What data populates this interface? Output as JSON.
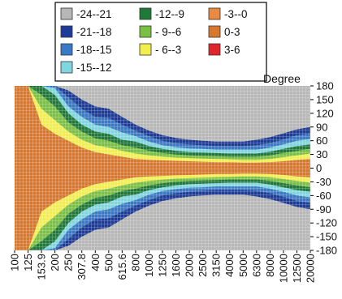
{
  "chart_data": {
    "type": "heatmap",
    "title": "",
    "xlabel": "",
    "ylabel": "Degree",
    "x_scale": "log",
    "x_ticks": [
      "100",
      "125",
      "153.9",
      "200",
      "250",
      "307.8",
      "400",
      "500",
      "615.6",
      "800",
      "1000",
      "1250",
      "1600",
      "2000",
      "2500",
      "3150",
      "4000",
      "5000",
      "6300",
      "8000",
      "10000",
      "12500",
      "20000"
    ],
    "y_ticks": [
      "180",
      "150",
      "120",
      "90",
      "60",
      "30",
      "0",
      "-30",
      "-60",
      "-90",
      "-120",
      "-150",
      "-180"
    ],
    "y_range": [
      -180,
      180
    ],
    "legend_position": "top-center",
    "legend": [
      {
        "label": "-24--21",
        "color": "#b7b7b7"
      },
      {
        "label": "-21--18",
        "color": "#1d3c99"
      },
      {
        "label": "-18--15",
        "color": "#3a79c6"
      },
      {
        "label": "-15--12",
        "color": "#7fd6e0"
      },
      {
        "label": "-12--9",
        "color": "#1f7a3a"
      },
      {
        "label": "- 9--6",
        "color": "#7ac143"
      },
      {
        "label": "- 6--3",
        "color": "#f2ee4e"
      },
      {
        "label": "-3--0",
        "color": "#e98a43"
      },
      {
        "label": "0-3",
        "color": "#d9772d"
      },
      {
        "label": "3-6",
        "color": "#e0262b"
      }
    ],
    "bands_by_frequency": [
      {
        "freq": "100",
        "-3--0": 180,
        "-6--3": 180,
        "-9--6": 180,
        "-12--9": 180,
        "-15--12": 180,
        "-18--15": 180,
        "-21--18": 180
      },
      {
        "freq": "125",
        "-3--0": 180,
        "-6--3": 180,
        "-9--6": 180,
        "-12--9": 180,
        "-15--12": 180,
        "-18--15": 180,
        "-21--18": 180
      },
      {
        "freq": "153.9",
        "-3--0": 95,
        "-6--3": 130,
        "-9--6": 160,
        "-12--9": 180,
        "-15--12": 180,
        "-18--15": 180,
        "-21--18": 180
      },
      {
        "freq": "200",
        "-3--0": 75,
        "-6--3": 105,
        "-9--6": 135,
        "-12--9": 160,
        "-15--12": 175,
        "-18--15": 180,
        "-21--18": 180
      },
      {
        "freq": "250",
        "-3--0": 60,
        "-6--3": 80,
        "-9--6": 100,
        "-12--9": 120,
        "-15--12": 135,
        "-18--15": 155,
        "-21--18": 170
      },
      {
        "freq": "307.8",
        "-3--0": 45,
        "-6--3": 62,
        "-9--6": 80,
        "-12--9": 95,
        "-15--12": 112,
        "-18--15": 130,
        "-21--18": 150
      },
      {
        "freq": "400",
        "-3--0": 35,
        "-6--3": 50,
        "-9--6": 65,
        "-12--9": 80,
        "-15--12": 95,
        "-18--15": 112,
        "-21--18": 135
      },
      {
        "freq": "500",
        "-3--0": 30,
        "-6--3": 45,
        "-9--6": 60,
        "-12--9": 75,
        "-15--12": 90,
        "-18--15": 110,
        "-21--18": 130
      },
      {
        "freq": "615.6",
        "-3--0": 25,
        "-6--3": 38,
        "-9--6": 50,
        "-12--9": 62,
        "-15--12": 78,
        "-18--15": 95,
        "-21--18": 112
      },
      {
        "freq": "800",
        "-3--0": 20,
        "-6--3": 32,
        "-9--6": 45,
        "-12--9": 58,
        "-15--12": 70,
        "-18--15": 82,
        "-21--18": 95
      },
      {
        "freq": "1000",
        "-3--0": 18,
        "-6--3": 28,
        "-9--6": 38,
        "-12--9": 48,
        "-15--12": 58,
        "-18--15": 70,
        "-21--18": 82
      },
      {
        "freq": "1250",
        "-3--0": 17,
        "-6--3": 25,
        "-9--6": 33,
        "-12--9": 42,
        "-15--12": 50,
        "-18--15": 60,
        "-21--18": 72
      },
      {
        "freq": "1600",
        "-3--0": 16,
        "-6--3": 23,
        "-9--6": 30,
        "-12--9": 38,
        "-15--12": 46,
        "-18--15": 55,
        "-21--18": 66
      },
      {
        "freq": "2000",
        "-3--0": 15,
        "-6--3": 22,
        "-9--6": 28,
        "-12--9": 35,
        "-15--12": 43,
        "-18--15": 52,
        "-21--18": 62
      },
      {
        "freq": "2500",
        "-3--0": 14,
        "-6--3": 21,
        "-9--6": 27,
        "-12--9": 34,
        "-15--12": 42,
        "-18--15": 50,
        "-21--18": 60
      },
      {
        "freq": "3150",
        "-3--0": 13,
        "-6--3": 20,
        "-9--6": 26,
        "-12--9": 33,
        "-15--12": 40,
        "-18--15": 48,
        "-21--18": 58
      },
      {
        "freq": "4000",
        "-3--0": 13,
        "-6--3": 19,
        "-9--6": 25,
        "-12--9": 32,
        "-15--12": 40,
        "-18--15": 48,
        "-21--18": 58
      },
      {
        "freq": "5000",
        "-3--0": 12,
        "-6--3": 18,
        "-9--6": 25,
        "-12--9": 32,
        "-15--12": 40,
        "-18--15": 48,
        "-21--18": 58
      },
      {
        "freq": "6300",
        "-3--0": 12,
        "-6--3": 18,
        "-9--6": 25,
        "-12--9": 32,
        "-15--12": 40,
        "-18--15": 50,
        "-21--18": 62
      },
      {
        "freq": "8000",
        "-3--0": 13,
        "-6--3": 20,
        "-9--6": 28,
        "-12--9": 36,
        "-15--12": 45,
        "-18--15": 55,
        "-21--18": 68
      },
      {
        "freq": "10000",
        "-3--0": 15,
        "-6--3": 24,
        "-9--6": 33,
        "-12--9": 42,
        "-15--12": 52,
        "-18--15": 63,
        "-21--18": 76
      },
      {
        "freq": "12500",
        "-3--0": 18,
        "-6--3": 28,
        "-9--6": 38,
        "-12--9": 48,
        "-15--12": 60,
        "-18--15": 72,
        "-21--18": 85
      },
      {
        "freq": "20000",
        "-3--0": 20,
        "-6--3": 32,
        "-9--6": 42,
        "-12--9": 52,
        "-15--12": 64,
        "-18--15": 76,
        "-21--18": 90
      }
    ],
    "grid": true
  }
}
